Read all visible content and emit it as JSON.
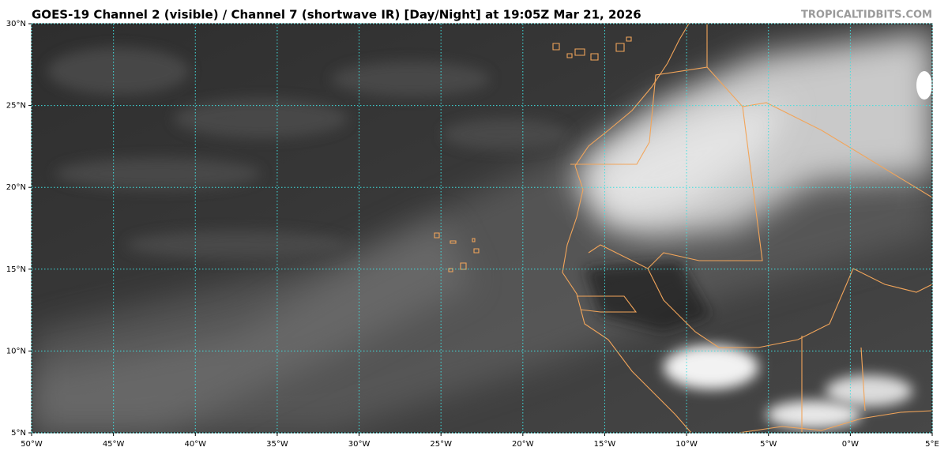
{
  "map": {
    "title": "GOES-19 Channel 2 (visible) / Channel 7 (shortwave IR) [Day/Night] at 19:05Z Mar 21, 2026",
    "credit": "TROPICALTIDBITS.COM",
    "xlim": [
      -50,
      5
    ],
    "ylim": [
      5,
      30
    ],
    "xticks": [
      {
        "value": -50,
        "label": "50°W"
      },
      {
        "value": -45,
        "label": "45°W"
      },
      {
        "value": -40,
        "label": "40°W"
      },
      {
        "value": -35,
        "label": "35°W"
      },
      {
        "value": -30,
        "label": "30°W"
      },
      {
        "value": -25,
        "label": "25°W"
      },
      {
        "value": -20,
        "label": "20°W"
      },
      {
        "value": -15,
        "label": "15°W"
      },
      {
        "value": -10,
        "label": "10°W"
      },
      {
        "value": -5,
        "label": "5°W"
      },
      {
        "value": 0,
        "label": "0°W"
      },
      {
        "value": 5,
        "label": "5°E"
      }
    ],
    "yticks": [
      {
        "value": 5,
        "label": "5°N"
      },
      {
        "value": 10,
        "label": "10°N"
      },
      {
        "value": 15,
        "label": "15°N"
      },
      {
        "value": 20,
        "label": "20°N"
      },
      {
        "value": 25,
        "label": "25°N"
      },
      {
        "value": 30,
        "label": "30°N"
      }
    ],
    "grid": true
  }
}
